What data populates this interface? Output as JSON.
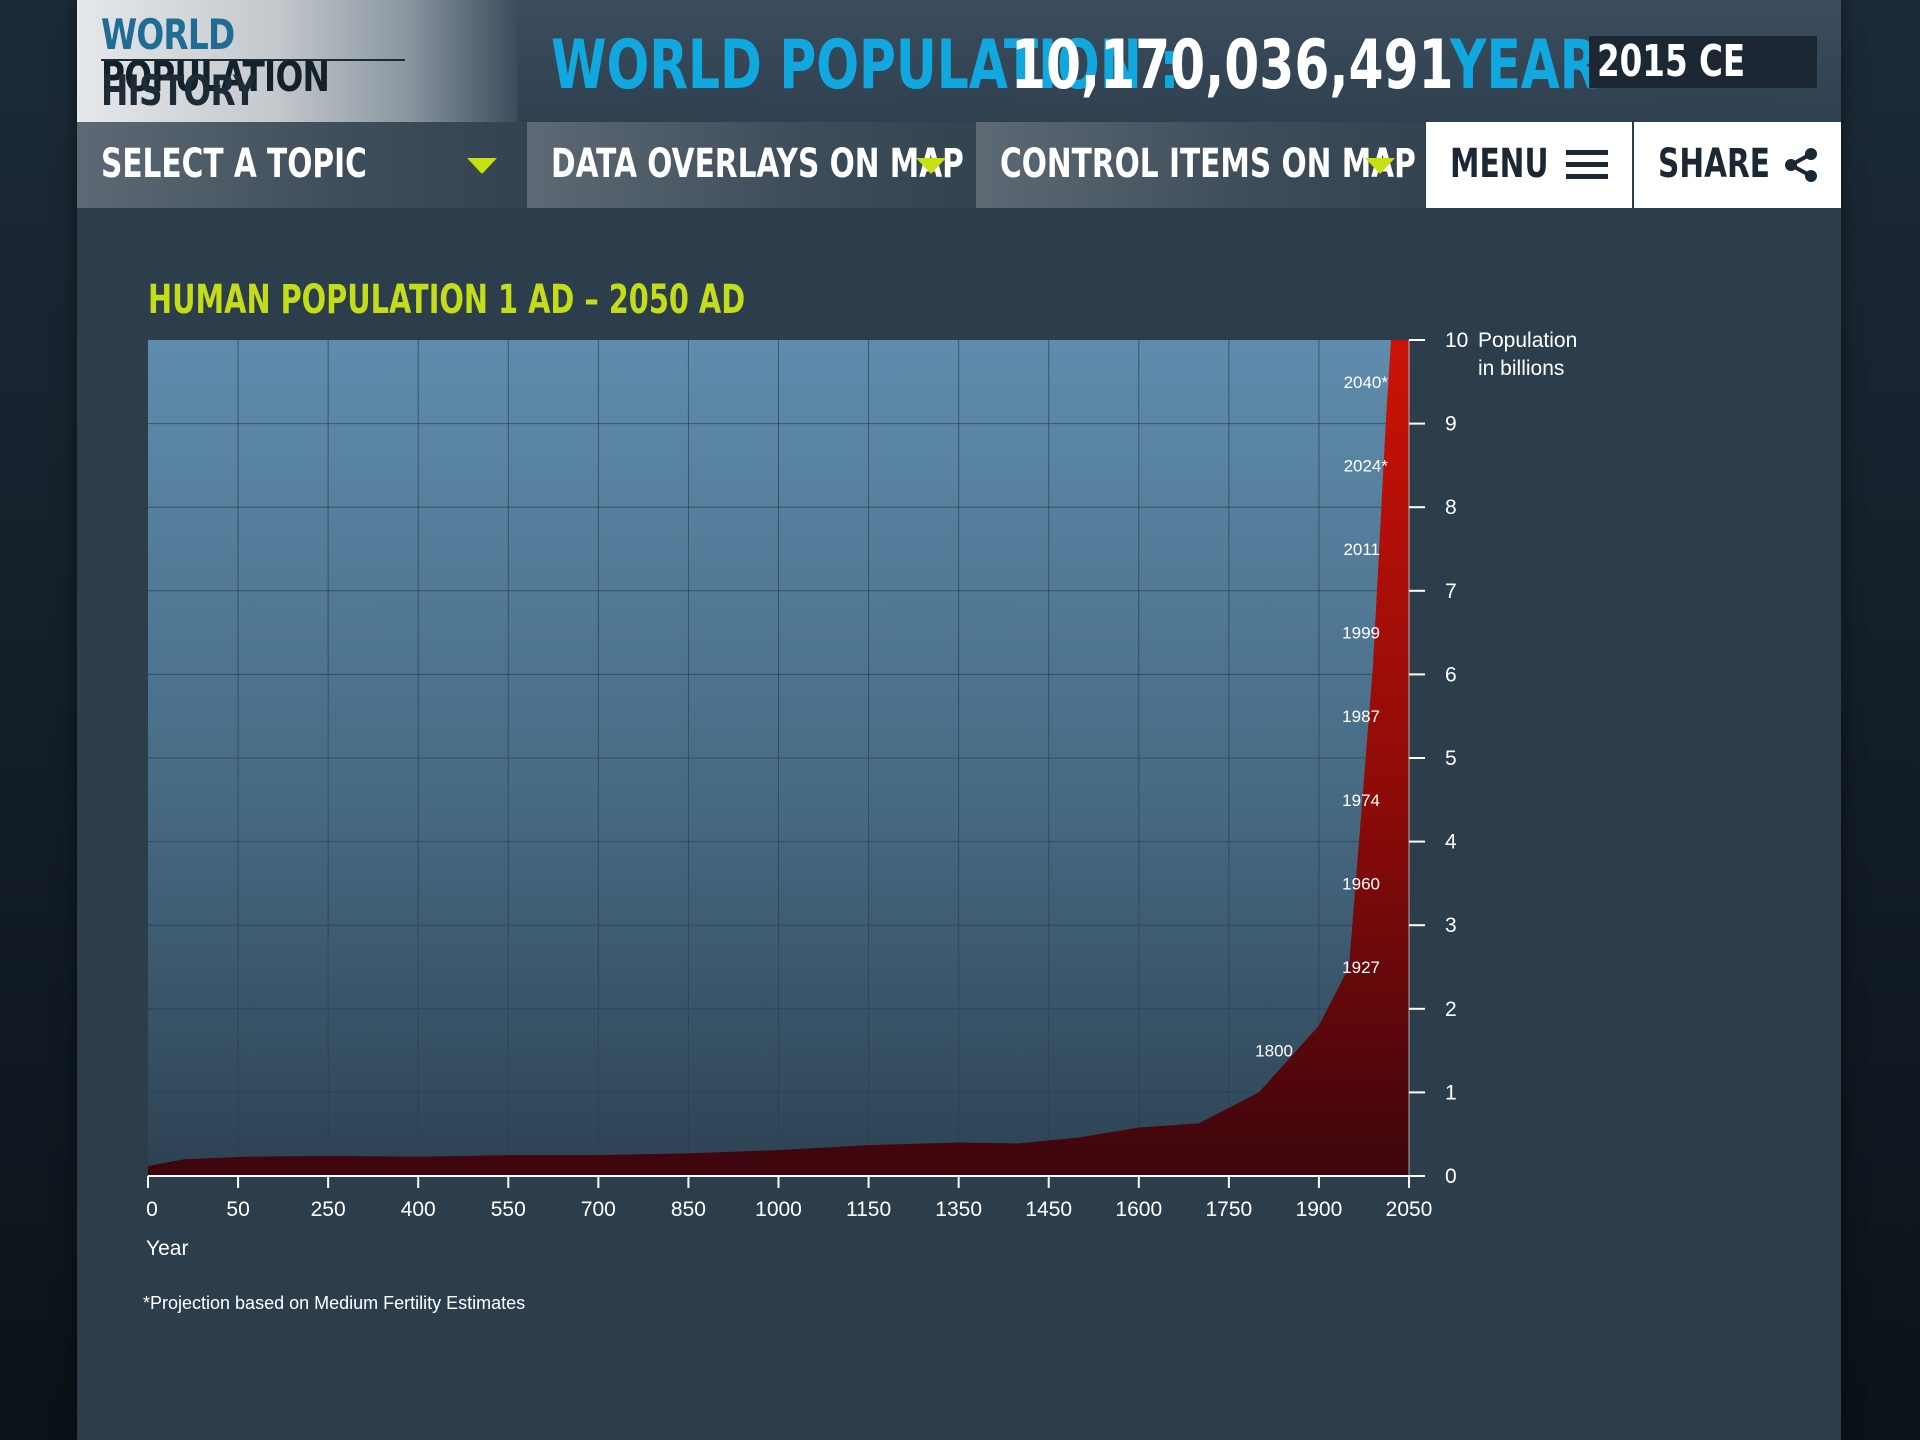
{
  "header": {
    "logo_line1_a": "WORLD",
    "logo_line1_b": "POPULATION",
    "logo_line2": "HISTORY",
    "population_label": "WORLD POPULATION :",
    "population_value": "10,170,036,491",
    "year_label": "YEAR :",
    "year_value": "2015 CE",
    "accent_color": "#11a8e0"
  },
  "nav": {
    "select_topic": "SELECT A TOPIC",
    "data_overlays": "DATA OVERLAYS ON MAP",
    "control_items": "CONTROL ITEMS  ON  MAP",
    "menu": "MENU",
    "share": "SHARE",
    "arrow_color": "#c6e10f",
    "menu_icon": "hamburger-icon",
    "share_icon": "share-icon"
  },
  "chart_data": {
    "type": "area",
    "title": "HUMAN POPULATION 1 AD – 2050 AD",
    "xlabel": "Year",
    "ylabel": "Population\nin billions",
    "ylim": [
      0,
      10
    ],
    "xlim": [
      0,
      2100
    ],
    "x_ticks": [
      "0",
      "50",
      "250",
      "400",
      "550",
      "700",
      "850",
      "1000",
      "1150",
      "1350",
      "1450",
      "1600",
      "1750",
      "1900",
      "2050"
    ],
    "y_ticks": [
      "0",
      "1",
      "2",
      "3",
      "4",
      "5",
      "6",
      "7",
      "8",
      "9",
      "10"
    ],
    "grid": true,
    "series_color": "#c21208",
    "series": [
      {
        "x": [
          0,
          60,
          160,
          300,
          450,
          600,
          750,
          900,
          1050,
          1200,
          1350,
          1450,
          1550,
          1650,
          1750,
          1850,
          1950,
          2000,
          2040,
          2062,
          2070,
          2100
        ],
        "values": [
          0.12,
          0.2,
          0.23,
          0.24,
          0.23,
          0.25,
          0.25,
          0.27,
          0.31,
          0.37,
          0.4,
          0.39,
          0.46,
          0.58,
          0.63,
          1.0,
          1.8,
          2.5,
          6.1,
          9.1,
          10.0,
          10.0
        ]
      }
    ],
    "annotations": [
      {
        "text": "2040*",
        "y": 9.5
      },
      {
        "text": "2024*",
        "y": 8.5
      },
      {
        "text": "2011",
        "y": 7.5
      },
      {
        "text": "1999",
        "y": 6.5
      },
      {
        "text": "1987",
        "y": 5.5
      },
      {
        "text": "1974",
        "y": 4.5
      },
      {
        "text": "1960",
        "y": 3.5
      },
      {
        "text": "1927",
        "y": 2.5
      },
      {
        "text": "1800",
        "y": 1.5
      }
    ],
    "footnote": "*Projection based on Medium Fertility Estimates"
  }
}
